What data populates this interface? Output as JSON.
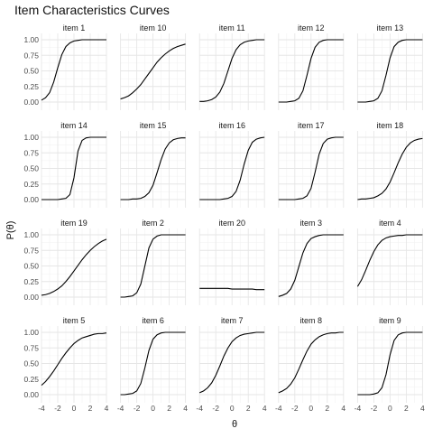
{
  "chart_data": {
    "type": "line",
    "title": "Item Characteristics Curves",
    "xlabel": "θ",
    "ylabel": "P(θ)",
    "xlim": [
      -4,
      4
    ],
    "ylim": [
      0,
      1
    ],
    "x_ticks": [
      -4,
      -2,
      0,
      2,
      4
    ],
    "y_ticks": [
      "0.00",
      "0.25",
      "0.50",
      "0.75",
      "1.00"
    ],
    "grid": true,
    "layout": "facet-grid-4x5",
    "x": [
      -4,
      -3.5,
      -3,
      -2.5,
      -2,
      -1.5,
      -1,
      -0.5,
      0,
      0.5,
      1,
      1.5,
      2,
      2.5,
      3,
      3.5,
      4
    ],
    "series": [
      {
        "name": "item 1",
        "values": [
          0.03,
          0.07,
          0.15,
          0.32,
          0.55,
          0.76,
          0.89,
          0.95,
          0.98,
          0.99,
          1.0,
          1.0,
          1.0,
          1.0,
          1.0,
          1.0,
          1.0
        ]
      },
      {
        "name": "item 10",
        "values": [
          0.05,
          0.07,
          0.1,
          0.15,
          0.21,
          0.28,
          0.37,
          0.46,
          0.55,
          0.64,
          0.71,
          0.77,
          0.82,
          0.86,
          0.89,
          0.91,
          0.93
        ]
      },
      {
        "name": "item 11",
        "values": [
          0.01,
          0.01,
          0.02,
          0.04,
          0.08,
          0.16,
          0.3,
          0.5,
          0.7,
          0.84,
          0.92,
          0.96,
          0.98,
          0.99,
          1.0,
          1.0,
          1.0
        ]
      },
      {
        "name": "item 12",
        "values": [
          0.0,
          0.0,
          0.0,
          0.01,
          0.02,
          0.06,
          0.18,
          0.43,
          0.7,
          0.88,
          0.96,
          0.99,
          1.0,
          1.0,
          1.0,
          1.0,
          1.0
        ]
      },
      {
        "name": "item 13",
        "values": [
          0.0,
          0.0,
          0.0,
          0.01,
          0.02,
          0.06,
          0.18,
          0.43,
          0.71,
          0.89,
          0.96,
          0.99,
          1.0,
          1.0,
          1.0,
          1.0,
          1.0
        ]
      },
      {
        "name": "item 14",
        "values": [
          0.0,
          0.0,
          0.0,
          0.0,
          0.0,
          0.01,
          0.02,
          0.08,
          0.35,
          0.78,
          0.95,
          0.99,
          1.0,
          1.0,
          1.0,
          1.0,
          1.0
        ]
      },
      {
        "name": "item 15",
        "values": [
          0.0,
          0.0,
          0.0,
          0.01,
          0.01,
          0.02,
          0.05,
          0.11,
          0.23,
          0.43,
          0.64,
          0.81,
          0.91,
          0.96,
          0.98,
          0.99,
          0.99
        ]
      },
      {
        "name": "item 16",
        "values": [
          0.0,
          0.0,
          0.0,
          0.0,
          0.0,
          0.0,
          0.01,
          0.02,
          0.05,
          0.13,
          0.31,
          0.57,
          0.79,
          0.92,
          0.97,
          0.99,
          1.0
        ]
      },
      {
        "name": "item 17",
        "values": [
          0.0,
          0.0,
          0.0,
          0.0,
          0.0,
          0.01,
          0.02,
          0.06,
          0.18,
          0.44,
          0.73,
          0.9,
          0.97,
          0.99,
          1.0,
          1.0,
          1.0
        ]
      },
      {
        "name": "item 18",
        "values": [
          0.0,
          0.01,
          0.01,
          0.02,
          0.03,
          0.06,
          0.1,
          0.17,
          0.28,
          0.43,
          0.59,
          0.73,
          0.84,
          0.91,
          0.95,
          0.97,
          0.98
        ]
      },
      {
        "name": "item 19",
        "values": [
          0.03,
          0.04,
          0.06,
          0.09,
          0.13,
          0.18,
          0.25,
          0.33,
          0.42,
          0.51,
          0.6,
          0.68,
          0.75,
          0.81,
          0.86,
          0.9,
          0.93
        ]
      },
      {
        "name": "item 2",
        "values": [
          0.0,
          0.0,
          0.01,
          0.02,
          0.07,
          0.21,
          0.5,
          0.79,
          0.93,
          0.98,
          1.0,
          1.0,
          1.0,
          1.0,
          1.0,
          1.0,
          1.0
        ]
      },
      {
        "name": "item 20",
        "values": [
          0.14,
          0.14,
          0.14,
          0.14,
          0.14,
          0.14,
          0.14,
          0.14,
          0.13,
          0.13,
          0.13,
          0.13,
          0.13,
          0.13,
          0.12,
          0.12,
          0.12
        ]
      },
      {
        "name": "item 3",
        "values": [
          0.01,
          0.03,
          0.06,
          0.13,
          0.27,
          0.49,
          0.71,
          0.86,
          0.94,
          0.97,
          0.99,
          1.0,
          1.0,
          1.0,
          1.0,
          1.0,
          1.0
        ]
      },
      {
        "name": "item 4",
        "values": [
          0.17,
          0.28,
          0.43,
          0.59,
          0.73,
          0.84,
          0.91,
          0.95,
          0.97,
          0.98,
          0.99,
          0.99,
          1.0,
          1.0,
          1.0,
          1.0,
          1.0
        ]
      },
      {
        "name": "item 5",
        "values": [
          0.15,
          0.21,
          0.29,
          0.38,
          0.48,
          0.58,
          0.67,
          0.75,
          0.82,
          0.87,
          0.91,
          0.93,
          0.95,
          0.97,
          0.98,
          0.98,
          0.99
        ]
      },
      {
        "name": "item 6",
        "values": [
          0.0,
          0.0,
          0.01,
          0.02,
          0.06,
          0.18,
          0.43,
          0.71,
          0.89,
          0.96,
          0.99,
          1.0,
          1.0,
          1.0,
          1.0,
          1.0,
          1.0
        ]
      },
      {
        "name": "item 7",
        "values": [
          0.03,
          0.06,
          0.11,
          0.19,
          0.31,
          0.46,
          0.62,
          0.75,
          0.85,
          0.91,
          0.95,
          0.97,
          0.98,
          0.99,
          1.0,
          1.0,
          1.0
        ]
      },
      {
        "name": "item 8",
        "values": [
          0.03,
          0.06,
          0.1,
          0.17,
          0.27,
          0.41,
          0.56,
          0.7,
          0.81,
          0.88,
          0.93,
          0.96,
          0.98,
          0.99,
          0.99,
          1.0,
          1.0
        ]
      },
      {
        "name": "item 9",
        "values": [
          0.0,
          0.0,
          0.0,
          0.0,
          0.01,
          0.03,
          0.11,
          0.32,
          0.64,
          0.87,
          0.96,
          0.99,
          1.0,
          1.0,
          1.0,
          1.0,
          1.0
        ]
      }
    ]
  }
}
